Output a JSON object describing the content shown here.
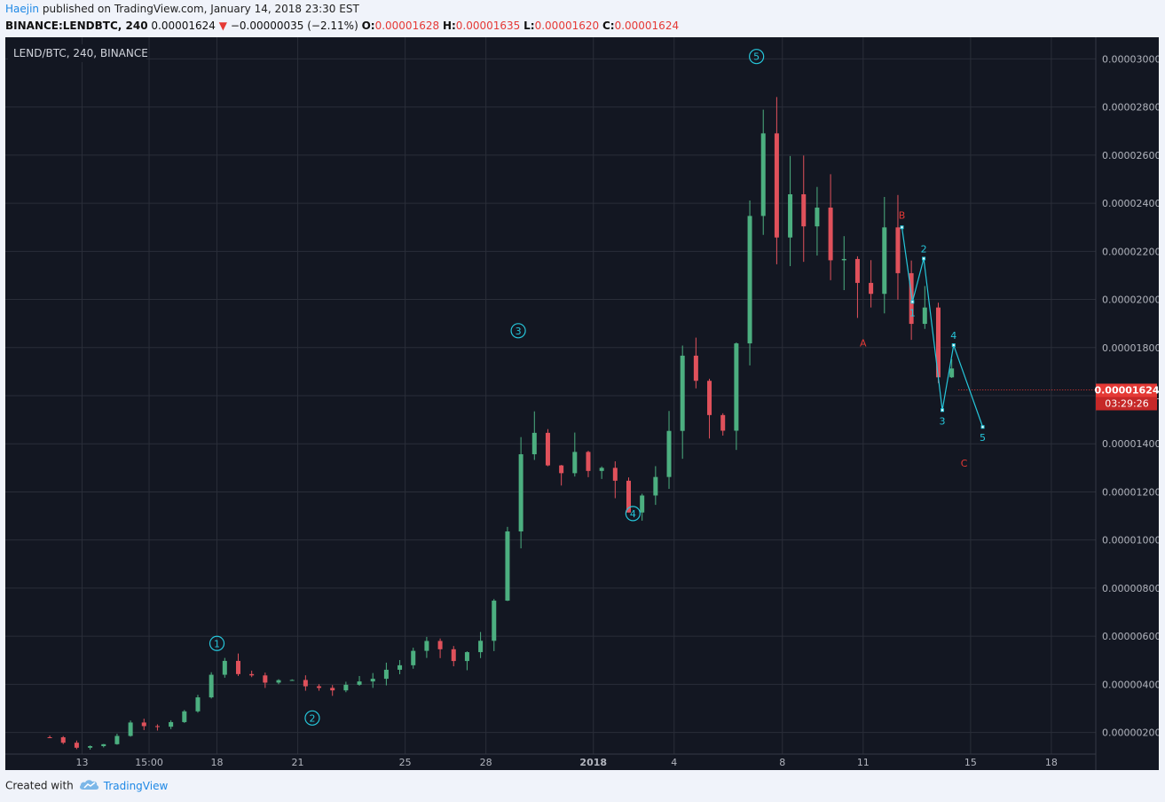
{
  "header": {
    "author": "Haejin",
    "published_text": "published on TradingView.com, January 14, 2018 23:30 EST",
    "symbol": "BINANCE:LENDBTC, 240",
    "last": "0.00001624",
    "change_arrow": "▼",
    "change": "−0.00000035 (−2.11%)",
    "o_label": "O:",
    "o": "0.00001628",
    "h_label": "H:",
    "h": "0.00001635",
    "l_label": "L:",
    "l": "0.00001620",
    "c_label": "C:",
    "c": "0.00001624"
  },
  "footer": {
    "created_with": "Created with",
    "brand": "TradingView",
    "logo_icon": "tradingview-cloud-icon"
  },
  "colors": {
    "background": "#131722",
    "grid": "#2a2e39",
    "up": "#4caf80",
    "down": "#e0515b",
    "wave": "#26c6da",
    "abc_label": "#e53935",
    "price_tag": "#e53935"
  },
  "chart_data": {
    "type": "candlestick",
    "title": "LEND/BTC, 240, BINANCE",
    "current_price_label": "0.00001624",
    "countdown_label": "03:29:26",
    "current_price": 1.624e-05,
    "ylim": [
      1.1e-06,
      3.09e-05
    ],
    "y_ticks": [
      2e-06,
      4e-06,
      6e-06,
      8e-06,
      1e-05,
      1.2e-05,
      1.4e-05,
      1.6e-05,
      1.8e-05,
      2e-05,
      2.2e-05,
      2.4e-05,
      2.6e-05,
      2.8e-05,
      3e-05
    ],
    "y_tick_labels": [
      "0.00000200",
      "0.00000400",
      "0.00000600",
      "0.00000800",
      "0.00001000",
      "0.00001200",
      "0.00001400",
      "0.00001600",
      "0.00001800",
      "0.00002000",
      "0.00002200",
      "0.00002400",
      "0.00002600",
      "0.00002800",
      "0.00003000"
    ],
    "x_ticks": [
      {
        "day": 13,
        "label": "13"
      },
      {
        "day": 13.83,
        "label": "15:00"
      },
      {
        "day": 14.67,
        "label": "18"
      },
      {
        "day": 15.67,
        "label": "21"
      },
      {
        "day": 17,
        "label": "25"
      },
      {
        "day": 18,
        "label": "28"
      },
      {
        "day": 19.33,
        "label": "2018"
      },
      {
        "day": 20.33,
        "label": "4"
      },
      {
        "day": 21.67,
        "label": "8"
      },
      {
        "day": 22.67,
        "label": "11"
      },
      {
        "day": 24,
        "label": "15"
      },
      {
        "day": 25,
        "label": "18"
      }
    ],
    "xlim": [
      12.05,
      25.55
    ],
    "price_path": [
      [
        12.6,
        1.8e-06
      ],
      [
        12.95,
        1.4e-06
      ],
      [
        13.3,
        1.5e-06
      ],
      [
        13.6,
        2.4e-06
      ],
      [
        14.0,
        2.3e-06
      ],
      [
        14.4,
        3.1e-06
      ],
      [
        14.65,
        4.7e-06
      ],
      [
        14.8,
        4.9e-06
      ],
      [
        15.2,
        4e-06
      ],
      [
        15.6,
        4.2e-06
      ],
      [
        16.0,
        3.6e-06
      ],
      [
        16.4,
        4.2e-06
      ],
      [
        16.9,
        4.5e-06
      ],
      [
        17.2,
        6.2e-06
      ],
      [
        17.5,
        5.1e-06
      ],
      [
        17.9,
        5.5e-06
      ],
      [
        18.2,
        8.5e-06
      ],
      [
        18.4,
        1.3e-05
      ],
      [
        18.5,
        1.6e-05
      ],
      [
        18.7,
        1.25e-05
      ],
      [
        19.0,
        1.35e-05
      ],
      [
        19.3,
        1.28e-05
      ],
      [
        19.55,
        1.32e-05
      ],
      [
        19.75,
        1.15e-05
      ],
      [
        20.0,
        1.18e-05
      ],
      [
        20.25,
        1.5e-05
      ],
      [
        20.45,
        1.75e-05
      ],
      [
        20.7,
        1.55e-05
      ],
      [
        21.0,
        1.5e-05
      ],
      [
        21.2,
        2.2e-05
      ],
      [
        21.4,
        2.68e-05
      ],
      [
        21.55,
        2.3e-05
      ],
      [
        21.75,
        2.45e-05
      ],
      [
        21.95,
        2.3e-05
      ],
      [
        22.1,
        2.4e-05
      ],
      [
        22.3,
        2.05e-05
      ],
      [
        22.55,
        2.1e-05
      ],
      [
        22.8,
        2e-05
      ],
      [
        22.95,
        2.28e-05
      ],
      [
        23.1,
        2.12e-05
      ],
      [
        23.3,
        1.95e-05
      ],
      [
        23.5,
        1.85e-05
      ],
      [
        23.6,
        1.65e-05
      ],
      [
        23.7,
        1.78e-05
      ],
      [
        23.85,
        1.62e-05
      ]
    ],
    "elliott_waves": [
      {
        "label": "1",
        "day": 14.67,
        "price": 5.7e-06
      },
      {
        "label": "2",
        "day": 15.85,
        "price": 2.6e-06
      },
      {
        "label": "3",
        "day": 18.4,
        "price": 1.87e-05
      },
      {
        "label": "4",
        "day": 19.82,
        "price": 1.11e-05
      },
      {
        "label": "5",
        "day": 21.35,
        "price": 3.01e-05
      }
    ],
    "abc_labels": [
      {
        "label": "A",
        "day": 22.67,
        "price": 1.82e-05
      },
      {
        "label": "B",
        "day": 23.15,
        "price": 2.35e-05
      },
      {
        "label": "C",
        "day": 23.92,
        "price": 1.32e-05
      }
    ],
    "subwave_path": [
      {
        "day": 23.15,
        "price": 2.3e-05
      },
      {
        "day": 23.28,
        "price": 1.99e-05,
        "label": "1"
      },
      {
        "day": 23.42,
        "price": 2.17e-05,
        "label": "2"
      },
      {
        "day": 23.65,
        "price": 1.54e-05,
        "label": "3"
      },
      {
        "day": 23.79,
        "price": 1.81e-05,
        "label": "4"
      },
      {
        "day": 24.15,
        "price": 1.47e-05,
        "label": "5"
      }
    ]
  }
}
